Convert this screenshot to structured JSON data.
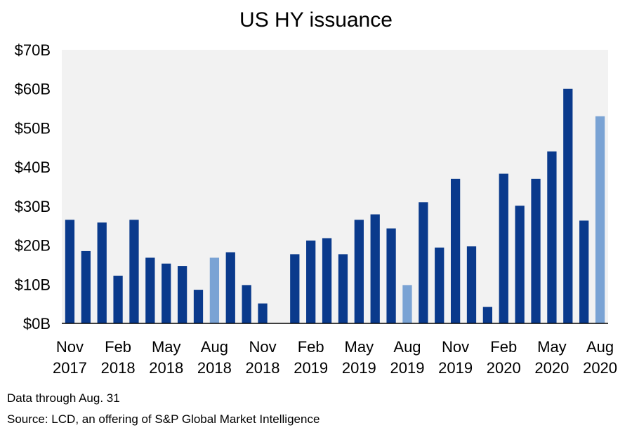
{
  "chart_data": {
    "type": "bar",
    "title": "US HY issuance",
    "ylabel": "",
    "xlabel": "",
    "ylim": [
      0,
      70
    ],
    "y_ticks": [
      "$0B",
      "$10B",
      "$20B",
      "$30B",
      "$40B",
      "$50B",
      "$60B",
      "$70B"
    ],
    "y_tick_values": [
      0,
      10,
      20,
      30,
      40,
      50,
      60,
      70
    ],
    "grid": false,
    "categories": [
      "Nov 2017",
      "Dec 2017",
      "Jan 2018",
      "Feb 2018",
      "Mar 2018",
      "Apr 2018",
      "May 2018",
      "Jun 2018",
      "Jul 2018",
      "Aug 2018",
      "Sep 2018",
      "Oct 2018",
      "Nov 2018",
      "Dec 2018",
      "Jan 2019",
      "Feb 2019",
      "Mar 2019",
      "Apr 2019",
      "May 2019",
      "Jun 2019",
      "Jul 2019",
      "Aug 2019",
      "Sep 2019",
      "Oct 2019",
      "Nov 2019",
      "Dec 2019",
      "Jan 2020",
      "Feb 2020",
      "Mar 2020",
      "Apr 2020",
      "May 2020",
      "Jun 2020",
      "Jul 2020",
      "Aug 2020"
    ],
    "values": [
      26.5,
      18.5,
      25.8,
      12.2,
      26.5,
      16.8,
      15.3,
      14.7,
      8.6,
      16.8,
      18.2,
      9.8,
      5.1,
      0,
      17.7,
      21.2,
      21.8,
      17.7,
      26.5,
      27.9,
      24.3,
      9.8,
      31.0,
      19.4,
      37.0,
      19.7,
      4.2,
      38.3,
      30.1,
      37.0,
      44.0,
      60.0,
      26.3,
      53.0
    ],
    "highlight_indices": [
      9,
      21,
      33
    ],
    "colors": {
      "primary": "#0a3a8c",
      "highlight": "#7aa3d4",
      "plot_bg": "#f2f2f2"
    },
    "x_tick_labels": [
      {
        "index": 0,
        "month": "Nov",
        "year": "2017"
      },
      {
        "index": 3,
        "month": "Feb",
        "year": "2018"
      },
      {
        "index": 6,
        "month": "May",
        "year": "2018"
      },
      {
        "index": 9,
        "month": "Aug",
        "year": "2018"
      },
      {
        "index": 12,
        "month": "Nov",
        "year": "2018"
      },
      {
        "index": 15,
        "month": "Feb",
        "year": "2019"
      },
      {
        "index": 18,
        "month": "May",
        "year": "2019"
      },
      {
        "index": 21,
        "month": "Aug",
        "year": "2019"
      },
      {
        "index": 24,
        "month": "Nov",
        "year": "2019"
      },
      {
        "index": 27,
        "month": "Feb",
        "year": "2020"
      },
      {
        "index": 30,
        "month": "May",
        "year": "2020"
      },
      {
        "index": 33,
        "month": "Aug",
        "year": "2020"
      }
    ]
  },
  "notes": {
    "data_through": "Data through Aug. 31",
    "source": "Source: LCD, an offering of S&P  Global Market Intelligence"
  }
}
